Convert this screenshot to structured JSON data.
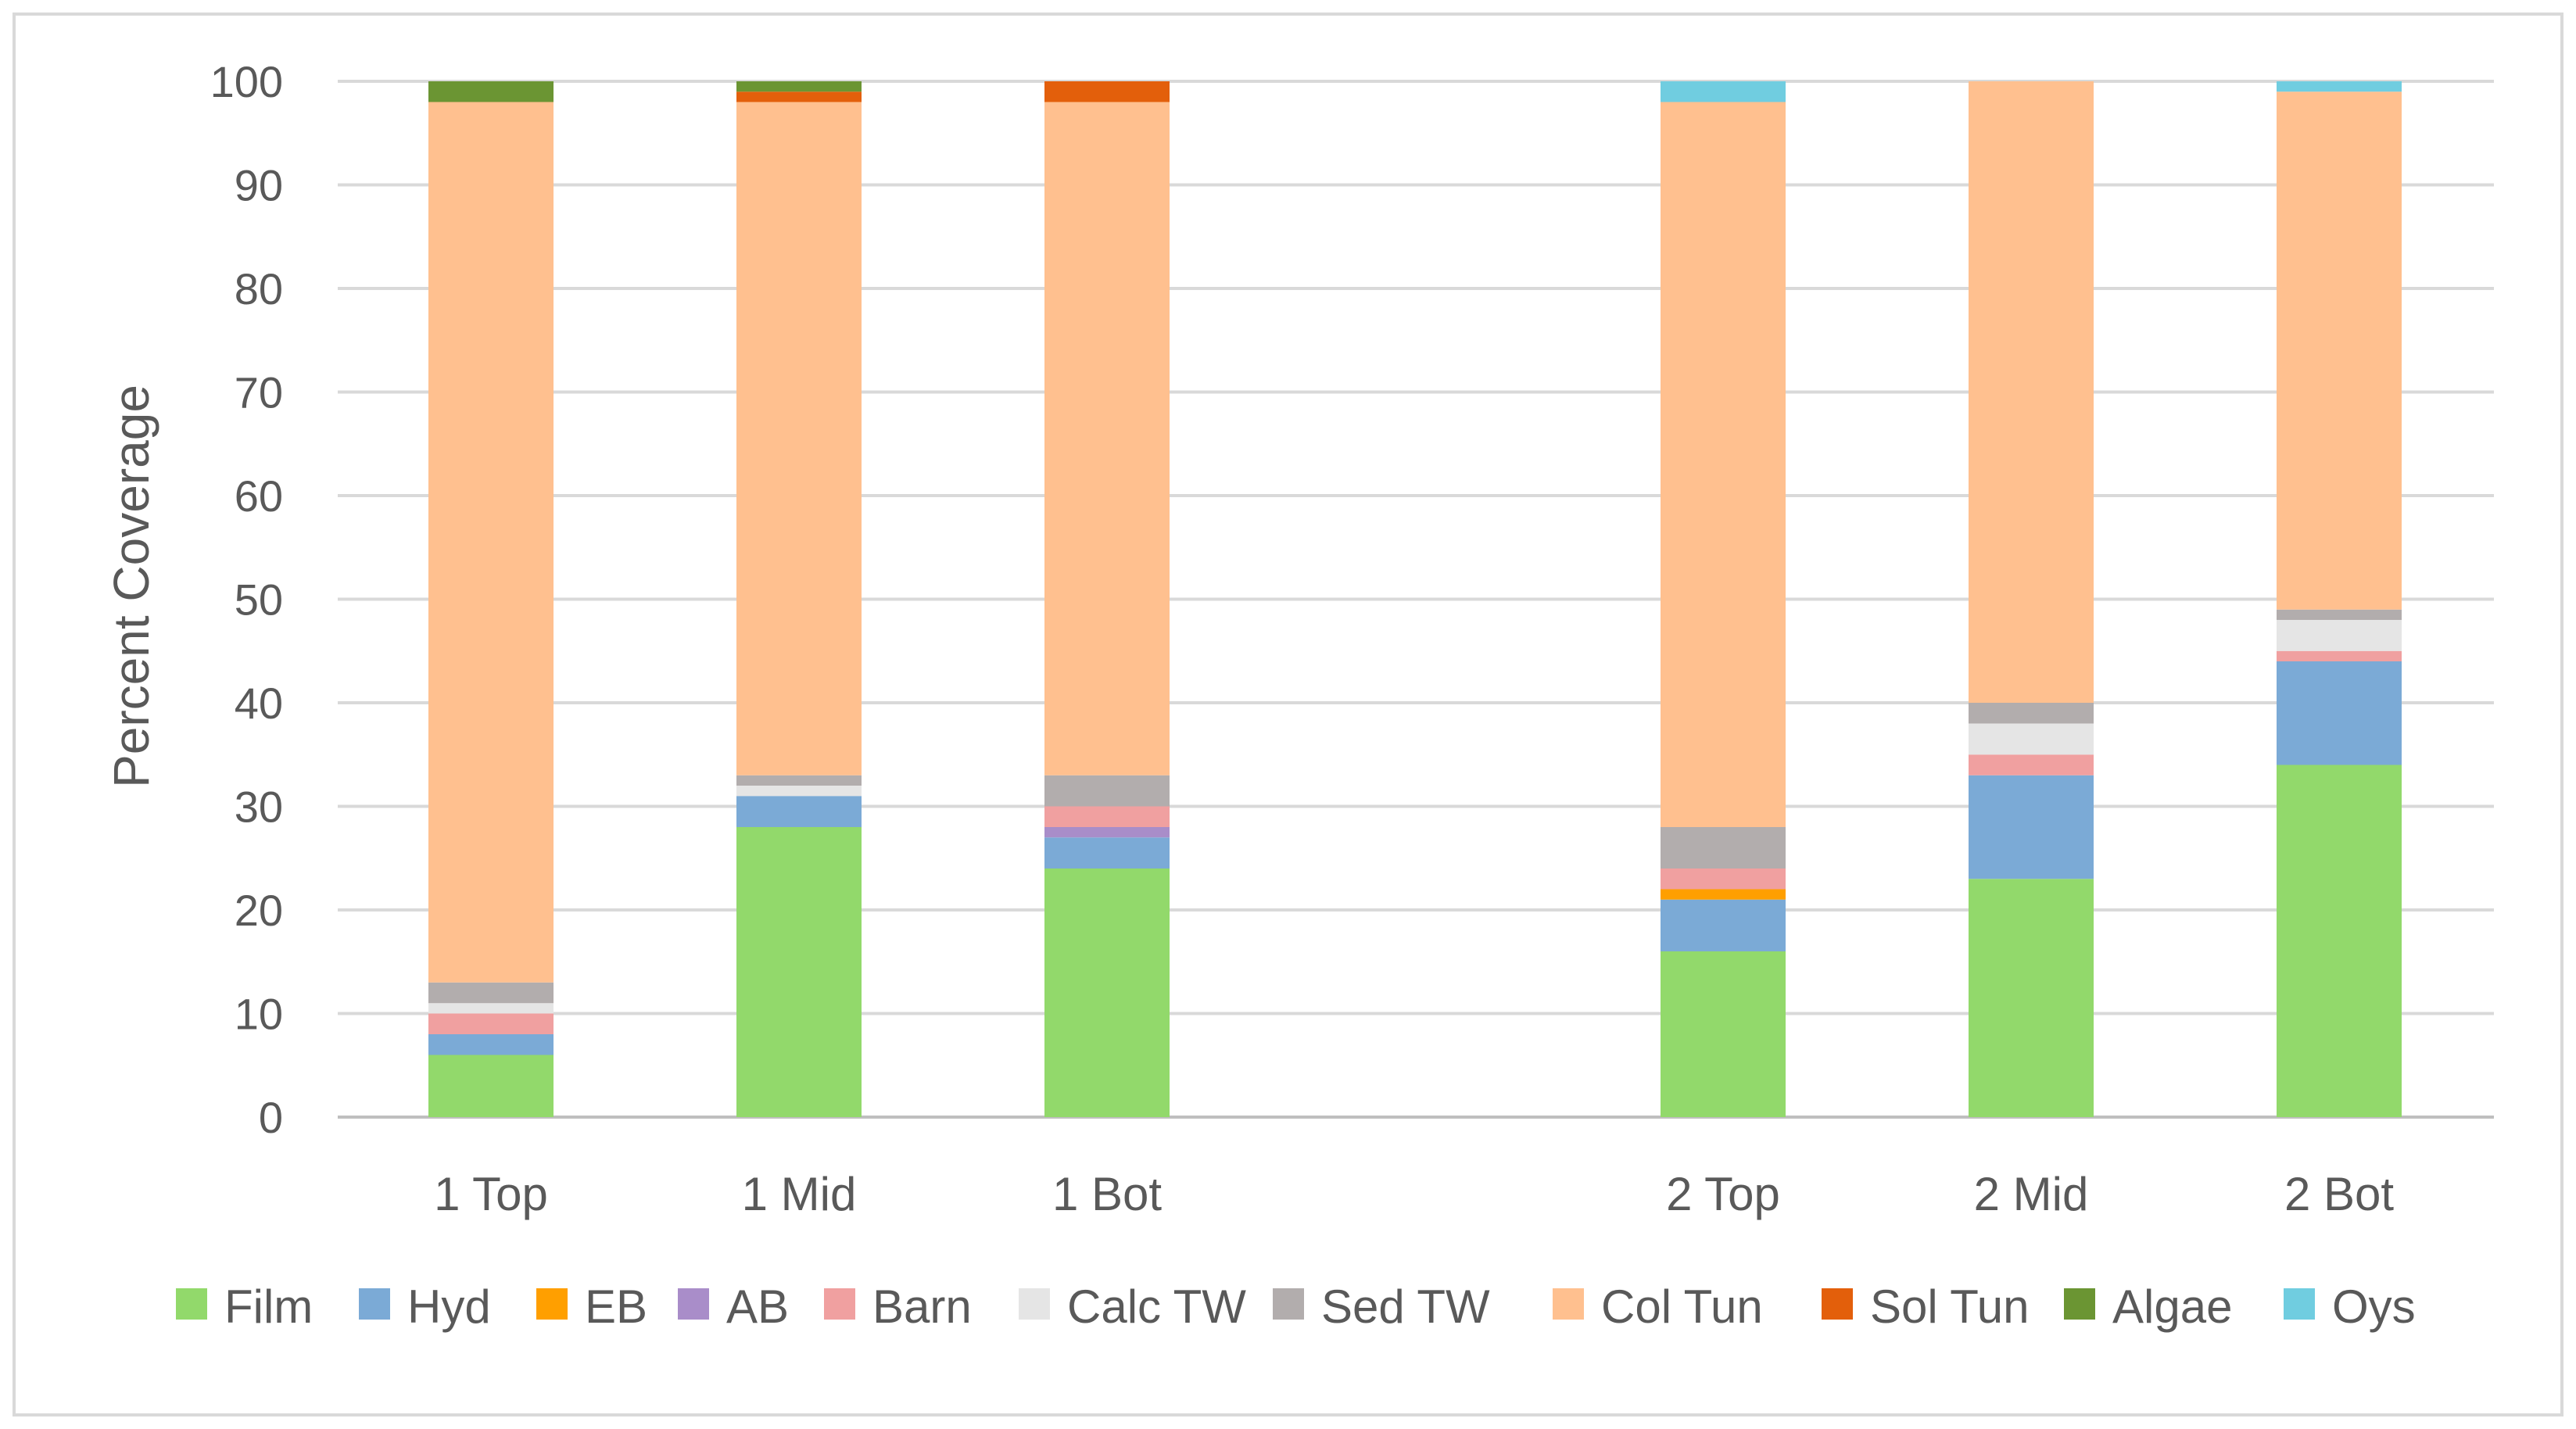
{
  "chart_data": {
    "type": "bar",
    "stacked": true,
    "title": "",
    "xlabel": "",
    "ylabel": "Percent Coverage",
    "ylim": [
      0,
      100
    ],
    "yticks": [
      0,
      10,
      20,
      30,
      40,
      50,
      60,
      70,
      80,
      90,
      100
    ],
    "grid": true,
    "legend_position": "bottom",
    "categories": [
      "1 Top",
      "1 Mid",
      "1 Bot",
      "2 Top",
      "2 Mid",
      "2 Bot"
    ],
    "series": [
      {
        "name": "Film",
        "color": "#92d96b",
        "values": [
          6,
          28,
          24,
          16,
          23,
          34
        ]
      },
      {
        "name": "Hyd",
        "color": "#7baad6",
        "values": [
          2,
          3,
          3,
          5,
          10,
          10
        ]
      },
      {
        "name": "EB",
        "color": "#ff9f00",
        "values": [
          0,
          0,
          0,
          1,
          0,
          0
        ]
      },
      {
        "name": "AB",
        "color": "#a98dc9",
        "values": [
          0,
          0,
          1,
          0,
          0,
          0
        ]
      },
      {
        "name": "Barn",
        "color": "#f0a0a0",
        "values": [
          2,
          0,
          2,
          2,
          2,
          1
        ]
      },
      {
        "name": "Calc TW",
        "color": "#e5e5e5",
        "values": [
          1,
          1,
          0,
          0,
          3,
          3
        ]
      },
      {
        "name": "Sed TW",
        "color": "#b2adad",
        "values": [
          2,
          1,
          3,
          4,
          2,
          1
        ]
      },
      {
        "name": "Col Tun",
        "color": "#ffc08f",
        "values": [
          85,
          65,
          65,
          70,
          60,
          50
        ]
      },
      {
        "name": "Sol Tun",
        "color": "#e35f0b",
        "values": [
          0,
          1,
          2,
          0,
          0,
          0
        ]
      },
      {
        "name": "Algae",
        "color": "#6b9533",
        "values": [
          2,
          1,
          0,
          0,
          0,
          0
        ]
      },
      {
        "name": "Oys",
        "color": "#70cde0",
        "values": [
          0,
          0,
          0,
          2,
          0,
          1
        ]
      }
    ]
  }
}
